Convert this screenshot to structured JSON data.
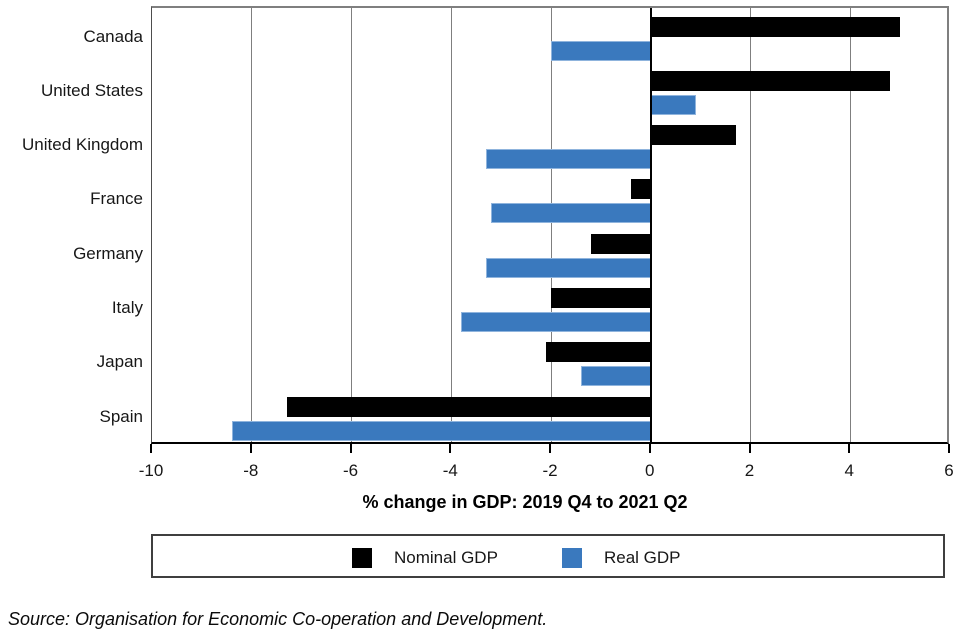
{
  "chart_data": {
    "type": "bar",
    "orientation": "horizontal",
    "title": "",
    "xlabel": "% change in GDP: 2019 Q4 to 2021 Q2",
    "ylabel": "",
    "xlim": [
      -10,
      6
    ],
    "xticks": [
      -10,
      -8,
      -6,
      -4,
      -2,
      0,
      2,
      4,
      6
    ],
    "grid": true,
    "legend_position": "bottom",
    "categories": [
      "Canada",
      "United States",
      "United Kingdom",
      "France",
      "Germany",
      "Italy",
      "Japan",
      "Spain"
    ],
    "series": [
      {
        "name": "Nominal GDP",
        "color": "#000000",
        "values": [
          5.0,
          4.8,
          1.7,
          -0.4,
          -1.2,
          -2.0,
          -2.1,
          -7.3
        ]
      },
      {
        "name": "Real GDP",
        "color": "#3a79be",
        "values": [
          -2.0,
          0.9,
          -3.3,
          -3.2,
          -3.3,
          -3.8,
          -1.4,
          -8.4
        ]
      }
    ]
  },
  "legend": {
    "items": [
      {
        "label": "Nominal GDP",
        "color": "#000000"
      },
      {
        "label": "Real GDP",
        "color": "#3a79be"
      }
    ]
  },
  "source": {
    "text": "Source: Organisation for Economic Co-operation and Development."
  },
  "colors": {
    "nominal_bar": "#000000",
    "real_bar": "#3a79be",
    "real_bar_border": "#8fb4dd",
    "gridline": "#7f7f7f",
    "zero_line": "#000000",
    "frame": "#7f7f7f"
  }
}
